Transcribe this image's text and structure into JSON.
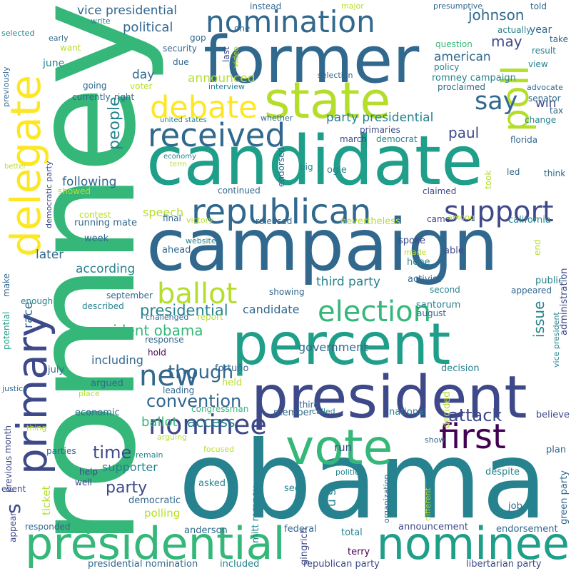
{
  "palette": [
    "#440154",
    "#482878",
    "#3e4989",
    "#31688e",
    "#26828e",
    "#1f9e89",
    "#35b779",
    "#6ece58",
    "#b5de2b",
    "#fde725"
  ],
  "words": [
    {
      "text": "romney",
      "color": "#35b779"
    },
    {
      "text": "obama",
      "color": "#26828e"
    },
    {
      "text": "campaign",
      "color": "#31688e"
    },
    {
      "text": "candidate",
      "color": "#1f9e89"
    },
    {
      "text": "former",
      "color": "#31688e"
    },
    {
      "text": "president",
      "color": "#3e4989"
    },
    {
      "text": "percent",
      "color": "#1f9e89"
    },
    {
      "text": "presidential",
      "color": "#35b779"
    },
    {
      "text": "nominee",
      "color": "#1f9e89"
    },
    {
      "text": "vote",
      "color": "#35b779"
    },
    {
      "text": "state",
      "color": "#b5de2b"
    },
    {
      "text": "delegate",
      "color": "#fde725"
    },
    {
      "text": "primary",
      "color": "#3e4989"
    },
    {
      "text": "republican",
      "color": "#31688e"
    },
    {
      "text": "received",
      "color": "#31688e"
    },
    {
      "text": "debate",
      "color": "#fde725"
    },
    {
      "text": "nomination",
      "color": "#31688e"
    },
    {
      "text": "ballot",
      "color": "#b5de2b"
    },
    {
      "text": "support",
      "color": "#3e4989"
    },
    {
      "text": "election",
      "color": "#35b779"
    },
    {
      "text": "first",
      "color": "#440154"
    },
    {
      "text": "poll",
      "color": "#b5de2b"
    },
    {
      "text": "new",
      "color": "#31688e"
    },
    {
      "text": "say",
      "color": "#31688e"
    },
    {
      "text": "nominee",
      "color": "#3e4989"
    },
    {
      "text": "though",
      "color": "#31688e"
    },
    {
      "text": "attack",
      "color": "#3e4989"
    },
    {
      "text": "convention",
      "color": "#31688e"
    },
    {
      "text": "presidential",
      "color": "#26828e"
    },
    {
      "text": "president obama",
      "color": "#35b779"
    },
    {
      "text": "time",
      "color": "#3e4989"
    },
    {
      "text": "party",
      "color": "#3e4989"
    },
    {
      "text": "johnson",
      "color": "#31688e"
    },
    {
      "text": "may",
      "color": "#3e4989"
    },
    {
      "text": "paul",
      "color": "#3e4989"
    },
    {
      "text": "people",
      "color": "#26828e"
    },
    {
      "text": "access",
      "color": "#26828e"
    },
    {
      "text": "ballot",
      "color": "#35b779"
    },
    {
      "text": "s",
      "color": "#3e4989"
    },
    {
      "text": "political",
      "color": "#31688e"
    },
    {
      "text": "vice presidential",
      "color": "#31688e"
    },
    {
      "text": "announced",
      "color": "#b5de2b"
    },
    {
      "text": "american",
      "color": "#31688e"
    },
    {
      "text": "party presidential",
      "color": "#26828e"
    },
    {
      "text": "third party",
      "color": "#26828e"
    },
    {
      "text": "according",
      "color": "#26828e"
    },
    {
      "text": "following",
      "color": "#31688e"
    },
    {
      "text": "speech",
      "color": "#b5de2b"
    },
    {
      "text": "including",
      "color": "#31688e"
    },
    {
      "text": "government",
      "color": "#31688e"
    },
    {
      "text": "supporter",
      "color": "#26828e"
    },
    {
      "text": "candidate",
      "color": "#31688e"
    },
    {
      "text": "issue",
      "color": "#26828e"
    },
    {
      "text": "race",
      "color": "#31688e"
    },
    {
      "text": "day",
      "color": "#31688e"
    },
    {
      "text": "win",
      "color": "#3e4989"
    },
    {
      "text": "later",
      "color": "#31688e"
    },
    {
      "text": "u s",
      "color": "#26828e"
    },
    {
      "text": "run",
      "color": "#3e4989"
    },
    {
      "text": "polling",
      "color": "#b5de2b"
    },
    {
      "text": "ticket",
      "color": "#b5de2b"
    },
    {
      "text": "year",
      "color": "#31688e"
    },
    {
      "text": "june",
      "color": "#26828e"
    },
    {
      "text": "romney campaign",
      "color": "#26828e"
    },
    {
      "text": "mitt romney",
      "color": "#26828e"
    },
    {
      "text": "presidential nomination",
      "color": "#31688e"
    },
    {
      "text": "republican party",
      "color": "#3e4989"
    },
    {
      "text": "libertarian party",
      "color": "#3e4989"
    },
    {
      "text": "gingrich",
      "color": "#3e4989"
    },
    {
      "text": "included",
      "color": "#26828e"
    },
    {
      "text": "governor",
      "color": "#35b779"
    },
    {
      "text": "anderson",
      "color": "#31688e"
    },
    {
      "text": "federal",
      "color": "#31688e"
    },
    {
      "text": "total",
      "color": "#26828e"
    },
    {
      "text": "terry",
      "color": "#440154"
    },
    {
      "text": "announcement",
      "color": "#3e4989"
    },
    {
      "text": "endorsement",
      "color": "#31688e"
    },
    {
      "text": "democratic",
      "color": "#31688e"
    },
    {
      "text": "asked",
      "color": "#26828e"
    },
    {
      "text": "seek",
      "color": "#26828e"
    },
    {
      "text": "job",
      "color": "#31688e"
    },
    {
      "text": "despite",
      "color": "#26828e"
    },
    {
      "text": "plan",
      "color": "#31688e"
    },
    {
      "text": "green party",
      "color": "#31688e"
    },
    {
      "text": "believe",
      "color": "#3e4989"
    },
    {
      "text": "national",
      "color": "#26828e"
    },
    {
      "text": "member",
      "color": "#31688e"
    },
    {
      "text": "decision",
      "color": "#26828e"
    },
    {
      "text": "decided",
      "color": "#b5de2b"
    },
    {
      "text": "economic",
      "color": "#31688e"
    },
    {
      "text": "argued",
      "color": "#31688e"
    },
    {
      "text": "held",
      "color": "#b5de2b"
    },
    {
      "text": "leading",
      "color": "#31688e"
    },
    {
      "text": "congressman",
      "color": "#35b779"
    },
    {
      "text": "fortuño",
      "color": "#31688e"
    },
    {
      "text": "response",
      "color": "#31688e"
    },
    {
      "text": "hold",
      "color": "#440154"
    },
    {
      "text": "july",
      "color": "#31688e"
    },
    {
      "text": "month",
      "color": "#3e4989"
    },
    {
      "text": "previous",
      "color": "#3e4989"
    },
    {
      "text": "parties",
      "color": "#31688e"
    },
    {
      "text": "help",
      "color": "#3e4989"
    },
    {
      "text": "well",
      "color": "#3e4989"
    },
    {
      "text": "event",
      "color": "#3e4989"
    },
    {
      "text": "appear",
      "color": "#3e4989"
    },
    {
      "text": "responded",
      "color": "#31688e"
    },
    {
      "text": "potential",
      "color": "#1f9e89"
    },
    {
      "text": "enough",
      "color": "#26828e"
    },
    {
      "text": "make",
      "color": "#31688e"
    },
    {
      "text": "running mate",
      "color": "#31688e"
    },
    {
      "text": "week",
      "color": "#31688e"
    },
    {
      "text": "contest",
      "color": "#b5de2b"
    },
    {
      "text": "final",
      "color": "#31688e"
    },
    {
      "text": "showed",
      "color": "#b5de2b"
    },
    {
      "text": "continued",
      "color": "#31688e"
    },
    {
      "text": "ogle",
      "color": "#26828e"
    },
    {
      "text": "primaries",
      "color": "#3e4989"
    },
    {
      "text": "march",
      "color": "#3e4989"
    },
    {
      "text": "democrat",
      "color": "#26828e"
    },
    {
      "text": "endorsed",
      "color": "#31688e"
    },
    {
      "text": "big",
      "color": "#26828e"
    },
    {
      "text": "took",
      "color": "#b5de2b"
    },
    {
      "text": "led",
      "color": "#31688e"
    },
    {
      "text": "claimed",
      "color": "#3e4989"
    },
    {
      "text": "among",
      "color": "#b5de2b"
    },
    {
      "text": "came",
      "color": "#3e4989"
    },
    {
      "text": "california",
      "color": "#26828e"
    },
    {
      "text": "nevertheless",
      "color": "#b5de2b"
    },
    {
      "text": "released",
      "color": "#31688e"
    },
    {
      "text": "spoke",
      "color": "#3e4989"
    },
    {
      "text": "able",
      "color": "#3e4989"
    },
    {
      "text": "end",
      "color": "#b5de2b"
    },
    {
      "text": "hope",
      "color": "#26828e"
    },
    {
      "text": "made",
      "color": "#b5de2b"
    },
    {
      "text": "activist",
      "color": "#31688e"
    },
    {
      "text": "public",
      "color": "#26828e"
    },
    {
      "text": "appeared",
      "color": "#31688e"
    },
    {
      "text": "showing",
      "color": "#31688e"
    },
    {
      "text": "second",
      "color": "#26828e"
    },
    {
      "text": "santorum",
      "color": "#26828e"
    },
    {
      "text": "august",
      "color": "#31688e"
    },
    {
      "text": "administration",
      "color": "#3e4989"
    },
    {
      "text": "vice president",
      "color": "#26828e"
    },
    {
      "text": "september",
      "color": "#31688e"
    },
    {
      "text": "described",
      "color": "#26828e"
    },
    {
      "text": "challenged",
      "color": "#31688e"
    },
    {
      "text": "report",
      "color": "#b5de2b"
    },
    {
      "text": "ahead",
      "color": "#31688e"
    },
    {
      "text": "website",
      "color": "#26828e"
    },
    {
      "text": "victory",
      "color": "#b5de2b"
    },
    {
      "text": "think",
      "color": "#31688e"
    },
    {
      "text": "florida",
      "color": "#31688e"
    },
    {
      "text": "change",
      "color": "#26828e"
    },
    {
      "text": "tax",
      "color": "#31688e"
    },
    {
      "text": "senator",
      "color": "#31688e"
    },
    {
      "text": "advocate",
      "color": "#31688e"
    },
    {
      "text": "view",
      "color": "#26828e"
    },
    {
      "text": "result",
      "color": "#26828e"
    },
    {
      "text": "take",
      "color": "#31688e"
    },
    {
      "text": "proclaimed",
      "color": "#31688e"
    },
    {
      "text": "policy",
      "color": "#26828e"
    },
    {
      "text": "question",
      "color": "#35b779"
    },
    {
      "text": "actually",
      "color": "#26828e"
    },
    {
      "text": "told",
      "color": "#31688e"
    },
    {
      "text": "presumptive",
      "color": "#31688e"
    },
    {
      "text": "major",
      "color": "#b5de2b"
    },
    {
      "text": "instead",
      "color": "#31688e"
    },
    {
      "text": "one",
      "color": "#31688e"
    },
    {
      "text": "gop",
      "color": "#31688e"
    },
    {
      "text": "security",
      "color": "#31688e"
    },
    {
      "text": "last",
      "color": "#3e4989"
    },
    {
      "text": "video",
      "color": "#b5de2b"
    },
    {
      "text": "interview",
      "color": "#26828e"
    },
    {
      "text": "selection",
      "color": "#31688e"
    },
    {
      "text": "due",
      "color": "#31688e"
    },
    {
      "text": "voter",
      "color": "#b5de2b"
    },
    {
      "text": "going",
      "color": "#31688e"
    },
    {
      "text": "currently",
      "color": "#31688e"
    },
    {
      "text": "right",
      "color": "#31688e"
    },
    {
      "text": "want",
      "color": "#b5de2b"
    },
    {
      "text": "early",
      "color": "#31688e"
    },
    {
      "text": "write",
      "color": "#26828e"
    },
    {
      "text": "selected",
      "color": "#26828e"
    },
    {
      "text": "previously",
      "color": "#31688e"
    },
    {
      "text": "united states",
      "color": "#26828e"
    },
    {
      "text": "whether",
      "color": "#31688e"
    },
    {
      "text": "economy",
      "color": "#26828e"
    },
    {
      "text": "term",
      "color": "#b5de2b"
    },
    {
      "text": "democratic party",
      "color": "#3e4989"
    },
    {
      "text": "better",
      "color": "#b5de2b"
    },
    {
      "text": "justice",
      "color": "#31688e"
    },
    {
      "text": "place",
      "color": "#b5de2b"
    },
    {
      "text": "thing",
      "color": "#b5de2b"
    },
    {
      "text": "focused",
      "color": "#b5de2b"
    },
    {
      "text": "remain",
      "color": "#26828e"
    },
    {
      "text": "arguing",
      "color": "#b5de2b"
    },
    {
      "text": "called",
      "color": "#26828e"
    },
    {
      "text": "third",
      "color": "#31688e"
    },
    {
      "text": "show",
      "color": "#31688e"
    },
    {
      "text": "politics",
      "color": "#26828e"
    },
    {
      "text": "organization",
      "color": "#31688e"
    },
    {
      "text": "different",
      "color": "#b5de2b"
    }
  ]
}
